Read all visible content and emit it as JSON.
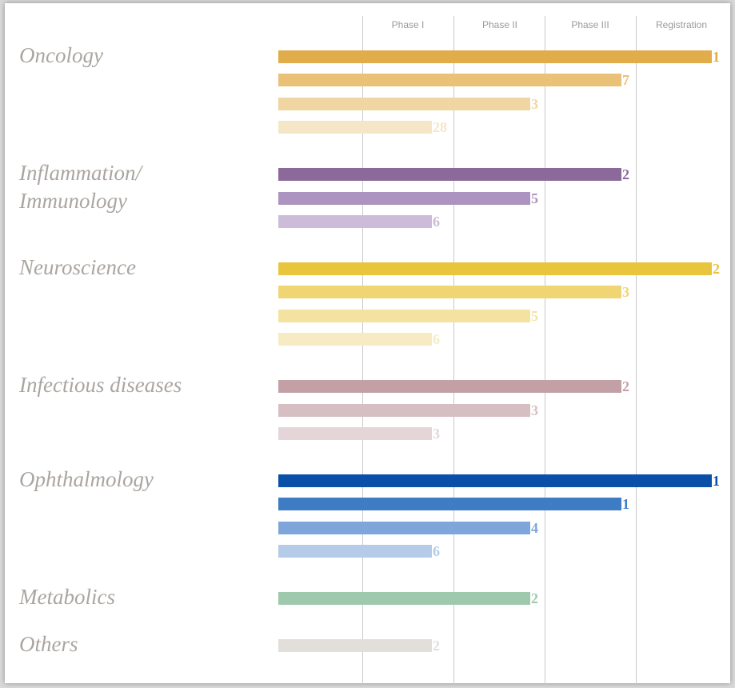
{
  "chart_data": {
    "type": "pipeline",
    "phases": [
      "Phase I",
      "Phase II",
      "Phase III",
      "Registration"
    ],
    "groups": [
      {
        "name": "Oncology",
        "bars": [
          {
            "phase": "Registration",
            "value": 1,
            "color": "#e0ad4a"
          },
          {
            "phase": "Phase III",
            "value": 7,
            "color": "#e9c177"
          },
          {
            "phase": "Phase II",
            "value": 3,
            "color": "#f0d6a2"
          },
          {
            "phase": "Phase I",
            "value": 28,
            "color": "#f5e6c8"
          }
        ]
      },
      {
        "name": "Inflammation/\nImmunology",
        "bars": [
          {
            "phase": "Phase III",
            "value": 2,
            "color": "#8b6a9b"
          },
          {
            "phase": "Phase II",
            "value": 5,
            "color": "#ad93bf"
          },
          {
            "phase": "Phase I",
            "value": 6,
            "color": "#cdbcd9"
          }
        ]
      },
      {
        "name": "Neuroscience",
        "bars": [
          {
            "phase": "Registration",
            "value": 2,
            "color": "#e9c43d"
          },
          {
            "phase": "Phase III",
            "value": 3,
            "color": "#f0d575"
          },
          {
            "phase": "Phase II",
            "value": 5,
            "color": "#f4e2a0"
          },
          {
            "phase": "Phase I",
            "value": 6,
            "color": "#f7ebc4"
          }
        ]
      },
      {
        "name": "Infectious diseases",
        "bars": [
          {
            "phase": "Phase III",
            "value": 2,
            "color": "#c2a0a6"
          },
          {
            "phase": "Phase II",
            "value": 3,
            "color": "#d6bfc3"
          },
          {
            "phase": "Phase I",
            "value": 3,
            "color": "#e4d6d8"
          }
        ]
      },
      {
        "name": "Ophthalmology",
        "bars": [
          {
            "phase": "Registration",
            "value": 1,
            "color": "#0a4fa8"
          },
          {
            "phase": "Phase III",
            "value": 1,
            "color": "#3e7cc4"
          },
          {
            "phase": "Phase II",
            "value": 4,
            "color": "#7fa6da"
          },
          {
            "phase": "Phase I",
            "value": 6,
            "color": "#b4cbea"
          }
        ]
      },
      {
        "name": "Metabolics",
        "bars": [
          {
            "phase": "Phase II",
            "value": 2,
            "color": "#9ec9ad"
          }
        ]
      },
      {
        "name": "Others",
        "bars": [
          {
            "phase": "Phase I",
            "value": 2,
            "color": "#e2deda"
          }
        ]
      }
    ]
  }
}
